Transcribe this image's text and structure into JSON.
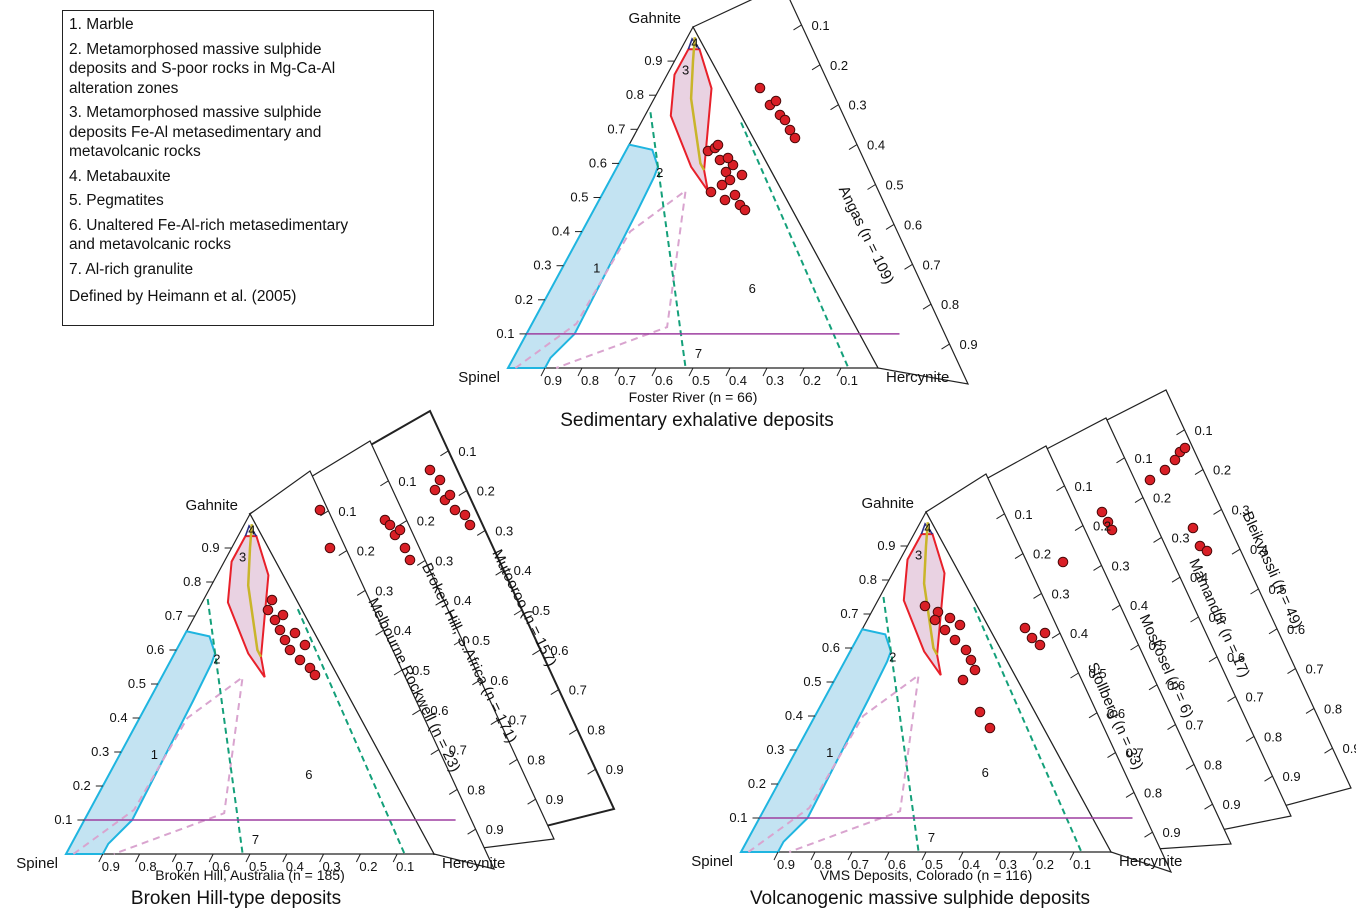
{
  "legend": {
    "items": [
      "1. Marble",
      "2. Metamorphosed massive sulphide\ndeposits and S-poor rocks in Mg-Ca-Al\nalteration zones",
      "3. Metamorphosed massive sulphide\ndeposits Fe-Al metasedimentary and\nmetavolcanic rocks",
      "4. Metabauxite",
      "5. Pegmatites",
      "6. Unaltered Fe-Al-rich metasedimentary\nand metavolcanic rocks",
      "7. Al-rich granulite"
    ],
    "footer": "Defined by Heimann et al. (2005)"
  },
  "corner_labels": {
    "top": "Gahnite",
    "left": "Spinel",
    "right": "Hercynite"
  },
  "field_labels": [
    "1",
    "2",
    "3",
    "4",
    "6",
    "7"
  ],
  "left_ticks": [
    "0.1",
    "0.2",
    "0.3",
    "0.4",
    "0.5",
    "0.6",
    "0.7",
    "0.8",
    "0.9"
  ],
  "bottom_ticks": [
    "0.9",
    "0.8",
    "0.7",
    "0.6",
    "0.5",
    "0.4",
    "0.3",
    "0.2",
    "0.1"
  ],
  "colors": {
    "field1_fill": "#c3e3f2",
    "field1_stroke": "#1fb5e0",
    "field3_fill": "#e9d2e2",
    "field3_stroke": "#e8202a",
    "field4_stroke": "#2b2d84",
    "yellow_line": "#c9b52a",
    "dashed_green": "#14a07a",
    "dashed_pink": "#d9a4cf",
    "purple_line": "#9e3fa0",
    "point_fill": "#d91f26",
    "point_stroke": "#4a0a0a"
  },
  "panels": [
    {
      "title": "Sedimentary exhalative deposits",
      "main_sample": "Foster River (n = 66)",
      "stacked": [
        {
          "label": "Angas (n = 109)"
        }
      ]
    },
    {
      "title": "Broken Hill-type deposits",
      "main_sample": "Broken Hill, Australia (n = 185)",
      "stacked": [
        {
          "label": "Melbourne Rockwell (n = 23)"
        },
        {
          "label": "Broken Hill, S.Africa (n = 171)"
        },
        {
          "label": "Mutooroo (n = 157)"
        }
      ]
    },
    {
      "title": "Volcanogenic massive sulphide deposits",
      "main_sample": "VMS Deposits, Colorado (n = 116)",
      "stacked": [
        {
          "label": "Stollberg (n = 33)"
        },
        {
          "label": "Moskosel (n = 6)"
        },
        {
          "label": "Mamandur (n = 17)"
        },
        {
          "label": "Bleikvassli (n = 49)"
        }
      ]
    }
  ]
}
